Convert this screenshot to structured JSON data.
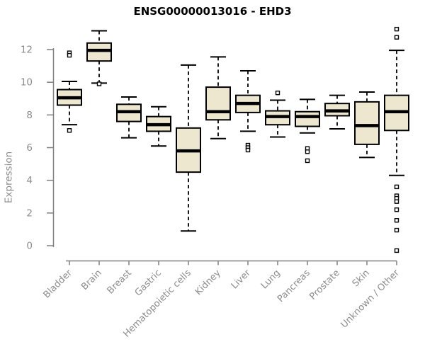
{
  "chart": {
    "title": "ENSG00000013016 - EHD3",
    "y_axis_label": "Expression"
  },
  "chart_data": {
    "type": "boxplot",
    "title": "ENSG00000013016 - EHD3",
    "xlabel": "",
    "ylabel": "Expression",
    "ylim": [
      -0.5,
      13.5
    ],
    "yticks": [
      0,
      2,
      4,
      6,
      8,
      10,
      12
    ],
    "grid": false,
    "legend": null,
    "categories": [
      "Bladder",
      "Brain",
      "Breast",
      "Gastric",
      "Hematopoietic cells",
      "Kidney",
      "Liver",
      "Lung",
      "Pancreas",
      "Prostate",
      "Skin",
      "Unknown / Other"
    ],
    "series": [
      {
        "label": "Bladder",
        "whisker_low": 7.4,
        "q1": 8.6,
        "median": 9.05,
        "q3": 9.55,
        "whisker_high": 10.05,
        "outliers": [
          11.8,
          11.65,
          7.05
        ]
      },
      {
        "label": "Brain",
        "whisker_low": 9.95,
        "q1": 11.3,
        "median": 11.95,
        "q3": 12.4,
        "whisker_high": 13.15,
        "outliers": [
          9.9
        ]
      },
      {
        "label": "Breast",
        "whisker_low": 6.6,
        "q1": 7.6,
        "median": 8.2,
        "q3": 8.65,
        "whisker_high": 9.1,
        "outliers": []
      },
      {
        "label": "Gastric",
        "whisker_low": 6.1,
        "q1": 7.0,
        "median": 7.4,
        "q3": 7.9,
        "whisker_high": 8.5,
        "outliers": []
      },
      {
        "label": "Hematopoietic cells",
        "whisker_low": 0.9,
        "q1": 4.5,
        "median": 5.8,
        "q3": 7.2,
        "whisker_high": 11.05,
        "outliers": []
      },
      {
        "label": "Kidney",
        "whisker_low": 6.55,
        "q1": 7.7,
        "median": 8.2,
        "q3": 9.7,
        "whisker_high": 11.55,
        "outliers": []
      },
      {
        "label": "Liver",
        "whisker_low": 7.0,
        "q1": 8.15,
        "median": 8.7,
        "q3": 9.2,
        "whisker_high": 10.7,
        "outliers": [
          6.15,
          6.0,
          5.85
        ]
      },
      {
        "label": "Lung",
        "whisker_low": 6.65,
        "q1": 7.4,
        "median": 7.9,
        "q3": 8.25,
        "whisker_high": 8.9,
        "outliers": [
          9.35
        ]
      },
      {
        "label": "Pancreas",
        "whisker_low": 6.9,
        "q1": 7.3,
        "median": 7.9,
        "q3": 8.2,
        "whisker_high": 8.95,
        "outliers": [
          5.95,
          5.75,
          5.2
        ]
      },
      {
        "label": "Prostate",
        "whisker_low": 7.15,
        "q1": 7.95,
        "median": 8.25,
        "q3": 8.7,
        "whisker_high": 9.2,
        "outliers": []
      },
      {
        "label": "Skin",
        "whisker_low": 5.4,
        "q1": 6.2,
        "median": 7.35,
        "q3": 8.8,
        "whisker_high": 9.4,
        "outliers": []
      },
      {
        "label": "Unknown / Other",
        "whisker_low": 4.3,
        "q1": 7.05,
        "median": 8.2,
        "q3": 9.2,
        "whisker_high": 11.95,
        "outliers": [
          13.25,
          12.75,
          3.6,
          3.05,
          2.9,
          2.7,
          2.2,
          1.55,
          0.95,
          -0.3
        ]
      }
    ],
    "colors": {
      "box_fill": "#EDE7CF",
      "box_stroke": "#000000",
      "axis": "#808080",
      "text": "#8C8C8C",
      "title": "#000000"
    }
  }
}
